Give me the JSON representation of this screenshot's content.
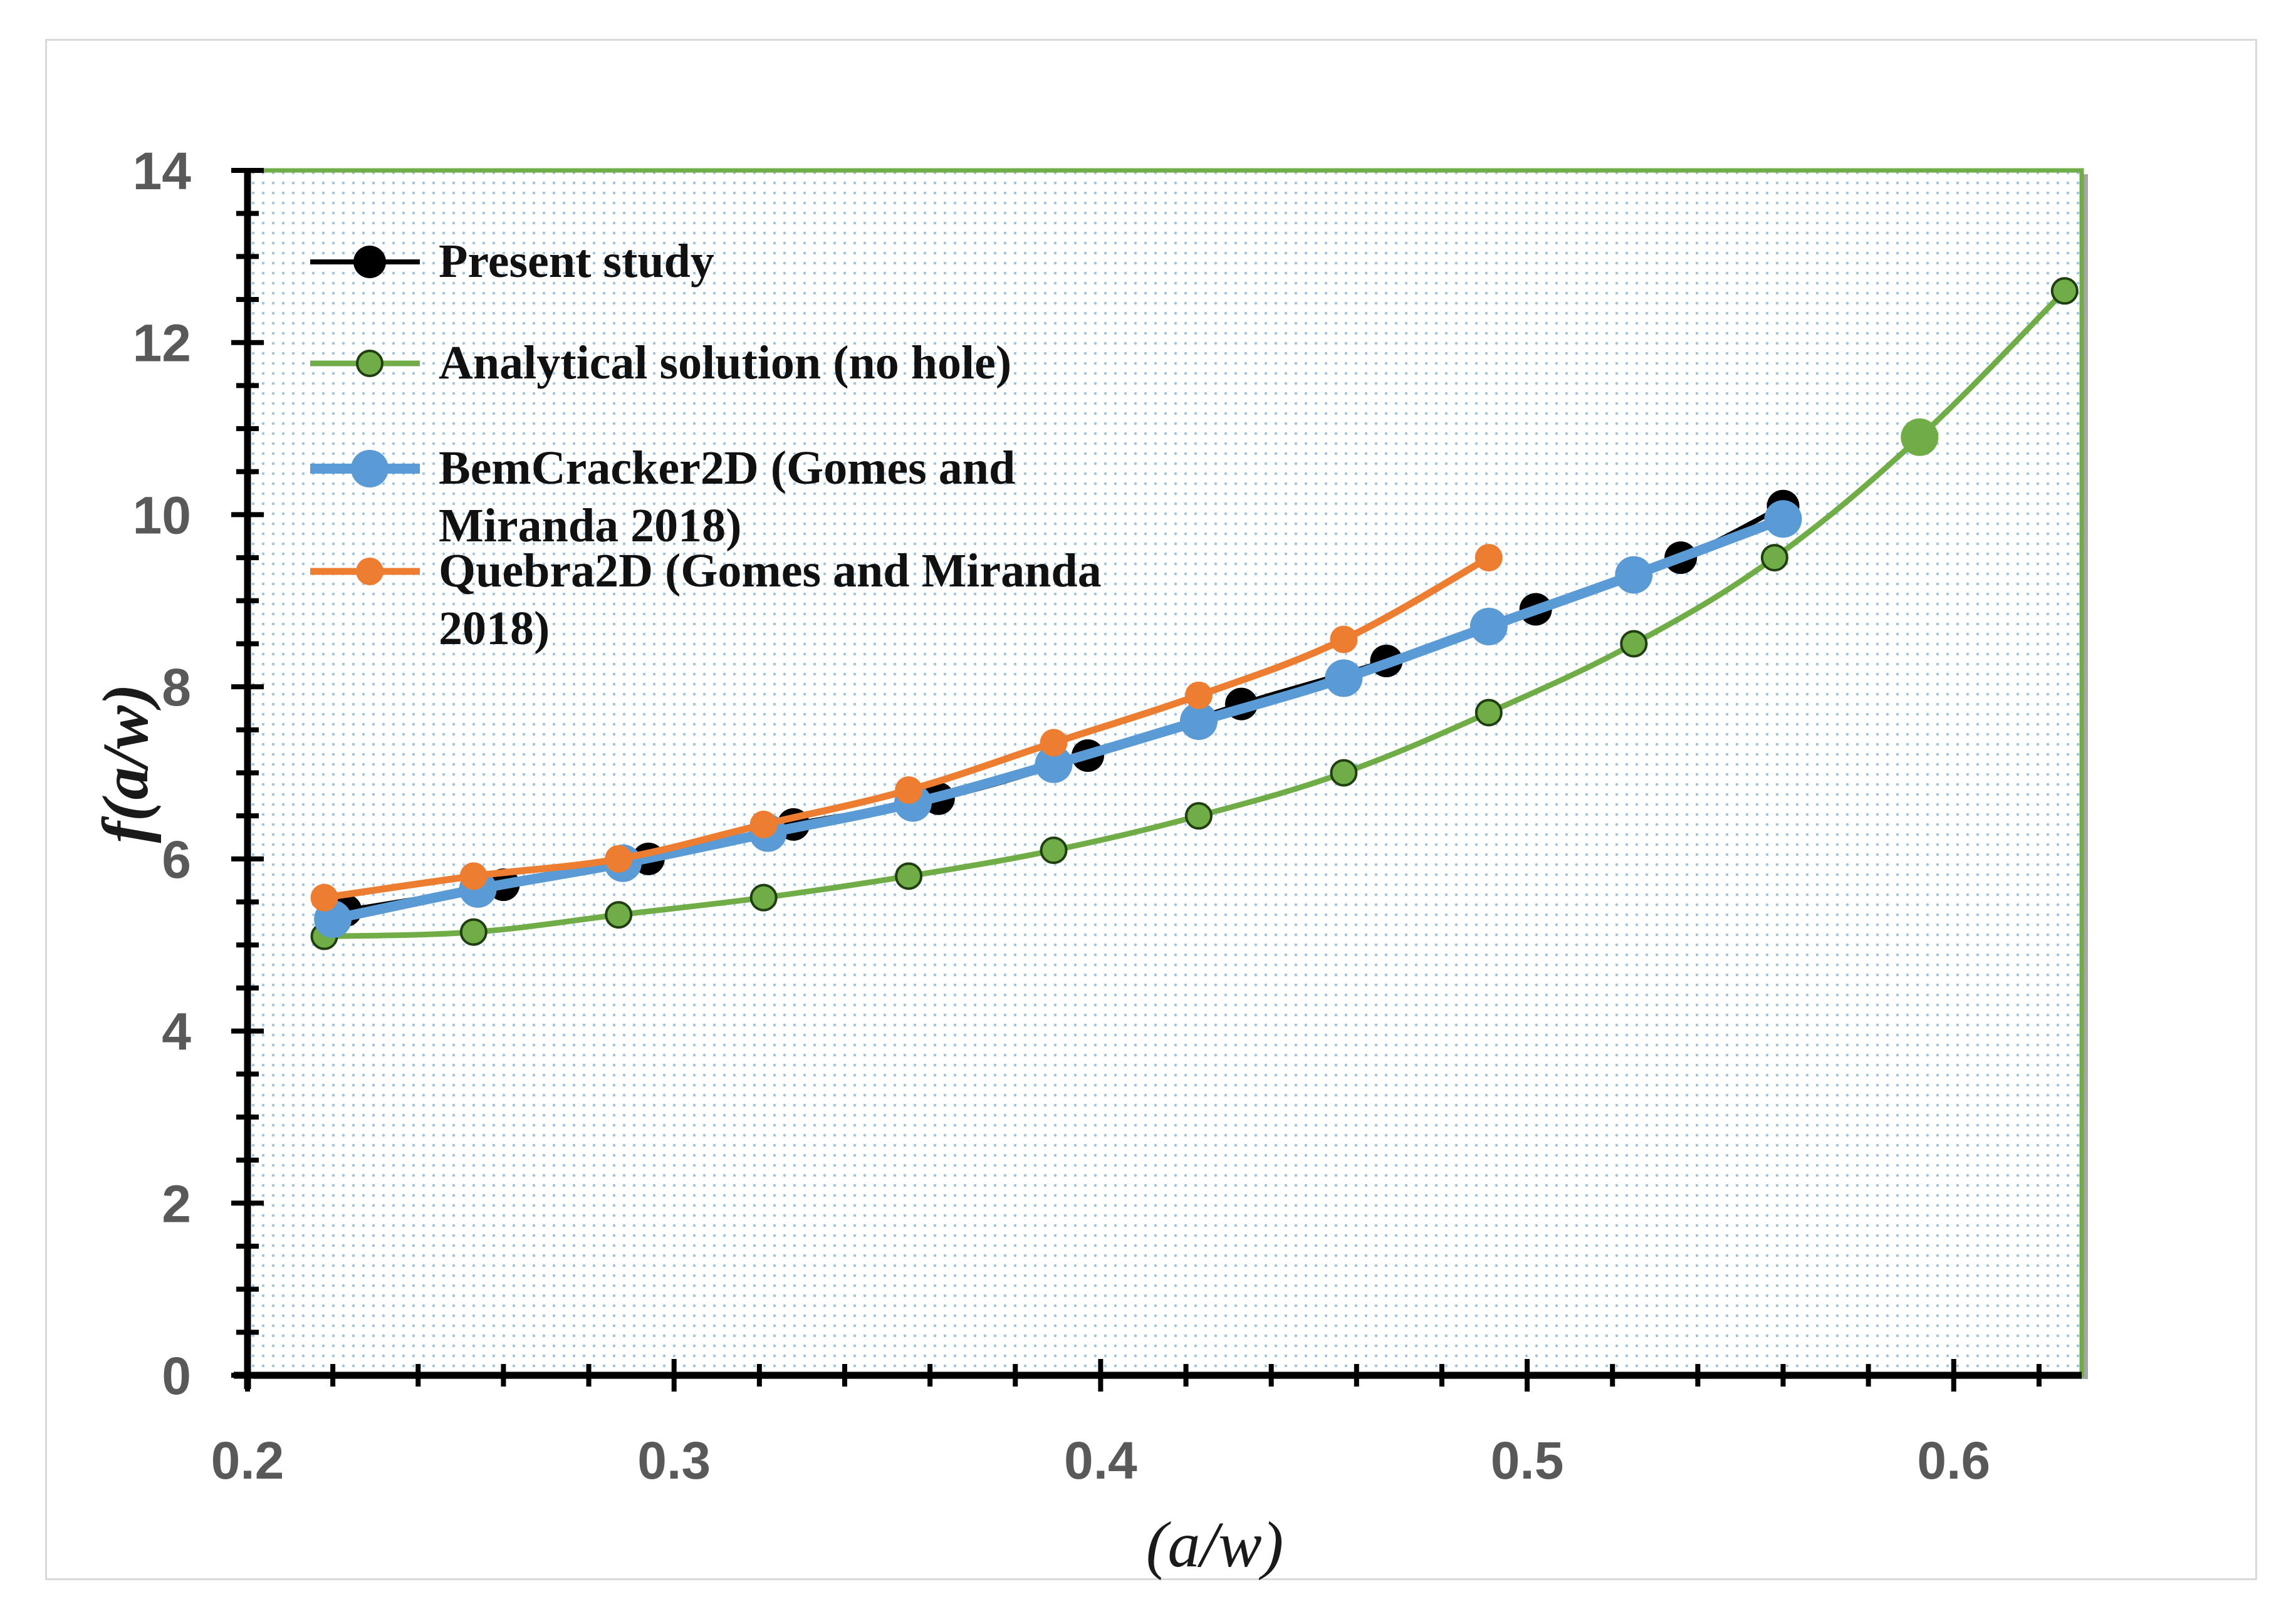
{
  "chart_data": {
    "type": "line",
    "title": "",
    "xlabel": "(a/w)",
    "ylabel": "f(a/w)",
    "xlim": [
      0.2,
      0.63
    ],
    "ylim": [
      0,
      14
    ],
    "xticks": [
      0.2,
      0.3,
      0.4,
      0.5,
      0.6
    ],
    "xtick_labels": [
      "0.2",
      "0.3",
      "0.4",
      "0.5",
      "0.6"
    ],
    "yticks": [
      0,
      2,
      4,
      6,
      8,
      10,
      12,
      14
    ],
    "ytick_labels": [
      "0",
      "2",
      "4",
      "6",
      "8",
      "10",
      "12",
      "14"
    ],
    "grid": false,
    "legend_position": "top-left",
    "series": [
      {
        "name": "Present study",
        "color": "#000000",
        "marker": "circle",
        "x": [
          0.223,
          0.26,
          0.294,
          0.328,
          0.362,
          0.397,
          0.433,
          0.467,
          0.502,
          0.536,
          0.56
        ],
        "y": [
          5.4,
          5.7,
          6.0,
          6.4,
          6.7,
          7.2,
          7.8,
          8.3,
          8.9,
          9.5,
          10.1
        ]
      },
      {
        "name": "Analytical solution (no hole)",
        "color": "#70ad47",
        "marker": "circle",
        "x": [
          0.218,
          0.253,
          0.287,
          0.321,
          0.355,
          0.389,
          0.423,
          0.457,
          0.491,
          0.525,
          0.558,
          0.592,
          0.626
        ],
        "y": [
          5.1,
          5.15,
          5.35,
          5.55,
          5.8,
          6.1,
          6.5,
          7.0,
          7.7,
          8.5,
          9.5,
          10.9,
          12.6
        ]
      },
      {
        "name": "BemCracker2D  (Gomes and Miranda 2018)",
        "color": "#5b9bd5",
        "marker": "circle",
        "x": [
          0.22,
          0.254,
          0.288,
          0.322,
          0.356,
          0.389,
          0.423,
          0.457,
          0.491,
          0.525,
          0.56
        ],
        "y": [
          5.3,
          5.65,
          5.95,
          6.3,
          6.65,
          7.1,
          7.6,
          8.1,
          8.7,
          9.3,
          9.95
        ]
      },
      {
        "name": "Quebra2D  (Gomes and Miranda 2018)",
        "color": "#ed7d31",
        "marker": "circle",
        "x": [
          0.218,
          0.253,
          0.287,
          0.321,
          0.355,
          0.389,
          0.423,
          0.457,
          0.491
        ],
        "y": [
          5.55,
          5.8,
          6.0,
          6.4,
          6.8,
          7.35,
          7.9,
          8.55,
          9.5
        ]
      }
    ],
    "legend": [
      {
        "lines": [
          "Present study"
        ]
      },
      {
        "lines": [
          "Analytical solution (no hole)"
        ]
      },
      {
        "lines": [
          "BemCracker2D  (Gomes and",
          "Miranda 2018)"
        ]
      },
      {
        "lines": [
          "Quebra2D  (Gomes and Miranda",
          "2018)"
        ]
      }
    ],
    "colors": {
      "plot_background": "#ffffff",
      "plot_dots": "#9dc3e6",
      "plot_border": "#70ad47",
      "axis": "#000000"
    }
  }
}
